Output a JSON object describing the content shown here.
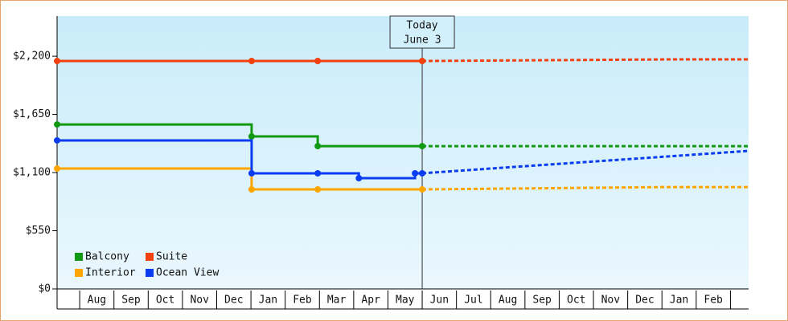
{
  "chart_data": {
    "type": "line",
    "step": "post",
    "today_label": "Today",
    "today_date": "June 3",
    "today_x": 11.0,
    "xlim": [
      0.34,
      20.53
    ],
    "xticks": [
      {
        "value": 1,
        "label": "Aug"
      },
      {
        "value": 2,
        "label": "Sep"
      },
      {
        "value": 3,
        "label": "Oct"
      },
      {
        "value": 4,
        "label": "Nov"
      },
      {
        "value": 5,
        "label": "Dec"
      },
      {
        "value": 6,
        "label": "Jan"
      },
      {
        "value": 7,
        "label": "Feb"
      },
      {
        "value": 8,
        "label": "Mar"
      },
      {
        "value": 9,
        "label": "Apr"
      },
      {
        "value": 10,
        "label": "May"
      },
      {
        "value": 11,
        "label": "Jun"
      },
      {
        "value": 12,
        "label": "Jul"
      },
      {
        "value": 13,
        "label": "Aug"
      },
      {
        "value": 14,
        "label": "Sep"
      },
      {
        "value": 15,
        "label": "Oct"
      },
      {
        "value": 16,
        "label": "Nov"
      },
      {
        "value": 17,
        "label": "Dec"
      },
      {
        "value": 18,
        "label": "Jan"
      },
      {
        "value": 19,
        "label": "Feb"
      }
    ],
    "ylim": [
      0,
      2580
    ],
    "yticks": [
      {
        "value": 0,
        "label": "$0"
      },
      {
        "value": 550,
        "label": "$550"
      },
      {
        "value": 1100,
        "label": "$1,100"
      },
      {
        "value": 1650,
        "label": "$1,650"
      },
      {
        "value": 2200,
        "label": "$2,200"
      }
    ],
    "series": [
      {
        "name": "Balcony",
        "color": "#119911",
        "x": [
          0.34,
          6.02,
          7.95,
          11.0
        ],
        "values": [
          1555,
          1442,
          1350,
          1350
        ],
        "forecast_x": [
          11.0,
          20.53
        ],
        "forecast_values": [
          1350,
          1350
        ]
      },
      {
        "name": "Suite",
        "color": "#f2400f",
        "x": [
          0.34,
          6.02,
          7.95,
          11.0
        ],
        "values": [
          2155,
          2155,
          2155,
          2155
        ],
        "forecast_x": [
          11.0,
          13.35,
          18.15,
          20.53
        ],
        "forecast_values": [
          2155,
          2160,
          2170,
          2170
        ]
      },
      {
        "name": "Interior",
        "color": "#ffa500",
        "x": [
          0.34,
          6.02,
          7.95,
          11.0
        ],
        "values": [
          1138,
          941,
          941,
          941
        ],
        "forecast_x": [
          11.0,
          13.35,
          18.15,
          20.53
        ],
        "forecast_values": [
          941,
          948,
          963,
          963
        ]
      },
      {
        "name": "Ocean View",
        "color": "#0a3cf0",
        "x": [
          0.34,
          6.02,
          7.95,
          9.15,
          10.79,
          11.0
        ],
        "values": [
          1404,
          1093,
          1093,
          1047,
          1093,
          1093
        ],
        "forecast_x": [
          11.0,
          13.35,
          18.15,
          20.53
        ],
        "forecast_values": [
          1093,
          1146,
          1252,
          1305
        ]
      }
    ]
  }
}
